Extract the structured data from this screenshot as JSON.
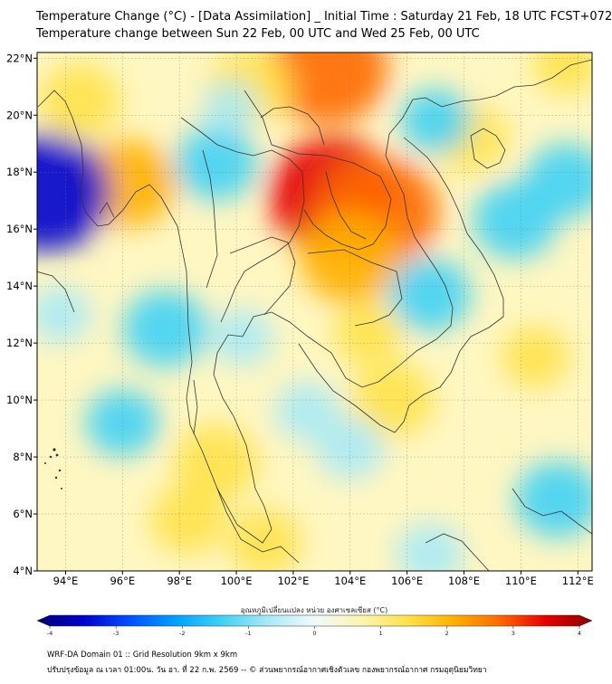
{
  "title": {
    "line1": "Temperature Change (°C) - [Data Assimilation] _ Initial Time : Saturday 21 Feb, 18 UTC FCST+072",
    "line2": "Temperature change between Sun 22 Feb, 00 UTC and Wed 25 Feb, 00 UTC"
  },
  "map": {
    "lat_labels": [
      "22°N",
      "20°N",
      "18°N",
      "16°N",
      "14°N",
      "12°N",
      "10°N",
      "8°N",
      "6°N",
      "4°N"
    ],
    "lon_labels": [
      "94°E",
      "96°E",
      "98°E",
      "100°E",
      "102°E",
      "104°E",
      "106°E",
      "108°E",
      "110°E",
      "112°E"
    ],
    "lat_values": [
      22,
      20,
      18,
      16,
      14,
      12,
      10,
      8,
      6,
      4
    ],
    "lon_values": [
      94,
      96,
      98,
      100,
      102,
      104,
      106,
      108,
      110,
      112
    ],
    "extent": {
      "lon_min": 93,
      "lon_max": 112.5,
      "lat_min": 4,
      "lat_max": 22.2
    },
    "anomalies": [
      {
        "lon": 103.4,
        "lat": 17.2,
        "value": 3.2
      },
      {
        "lon": 105.0,
        "lat": 16.6,
        "value": 2.9
      },
      {
        "lon": 103.2,
        "lat": 21.6,
        "value": 2.9
      },
      {
        "lon": 104.0,
        "lat": 15.0,
        "value": 2.2
      },
      {
        "lon": 96.2,
        "lat": 17.6,
        "value": 2.0
      },
      {
        "lon": 100.5,
        "lat": 21.0,
        "value": 1.6
      },
      {
        "lon": 94.5,
        "lat": 20.5,
        "value": 1.5
      },
      {
        "lon": 99.3,
        "lat": 7.8,
        "value": 1.6
      },
      {
        "lon": 98.3,
        "lat": 5.8,
        "value": 1.3
      },
      {
        "lon": 105.5,
        "lat": 10.0,
        "value": 1.5
      },
      {
        "lon": 101.0,
        "lat": 5.0,
        "value": 1.2
      },
      {
        "lon": 108.2,
        "lat": 19.2,
        "value": 1.3
      },
      {
        "lon": 110.5,
        "lat": 11.5,
        "value": 1.0
      },
      {
        "lon": 111.6,
        "lat": 21.8,
        "value": 1.0
      },
      {
        "lon": 104.6,
        "lat": 12.3,
        "value": 1.0
      },
      {
        "lon": 93.3,
        "lat": 17.3,
        "value": -3.2
      },
      {
        "lon": 99.3,
        "lat": 18.3,
        "value": -1.5
      },
      {
        "lon": 97.5,
        "lat": 12.5,
        "value": -1.6
      },
      {
        "lon": 96.0,
        "lat": 9.2,
        "value": -1.2
      },
      {
        "lon": 106.8,
        "lat": 13.7,
        "value": -1.5
      },
      {
        "lon": 109.8,
        "lat": 16.3,
        "value": -1.6
      },
      {
        "lon": 111.6,
        "lat": 17.7,
        "value": -1.5
      },
      {
        "lon": 104.0,
        "lat": 8.3,
        "value": -1.0
      },
      {
        "lon": 102.5,
        "lat": 9.6,
        "value": -0.9
      },
      {
        "lon": 107.0,
        "lat": 19.8,
        "value": -1.1
      },
      {
        "lon": 111.3,
        "lat": 6.5,
        "value": -1.6
      },
      {
        "lon": 106.8,
        "lat": 4.6,
        "value": -1.0
      },
      {
        "lon": 93.8,
        "lat": 13.0,
        "value": -0.8
      },
      {
        "lon": 100.2,
        "lat": 12.2,
        "value": -0.8
      },
      {
        "lon": 99.8,
        "lat": 20.3,
        "value": -0.6
      }
    ]
  },
  "colorbar": {
    "label": "อุณหภูมิเปลี่ยนแปลง หน่วย องศาเซลเซียส (°C)",
    "ticks": [
      "-4",
      "-3",
      "-2",
      "-1",
      "0",
      "1",
      "2",
      "3",
      "4"
    ],
    "tick_values": [
      -4,
      -3,
      -2,
      -1,
      0,
      1,
      2,
      3,
      4
    ],
    "colors": [
      "#00006e",
      "#0000cd",
      "#0050ff",
      "#00a0ff",
      "#40d2f5",
      "#a8eaf6",
      "#f0fafc",
      "#fbf6b0",
      "#ffe24a",
      "#ffb000",
      "#ff6a00",
      "#e60000",
      "#8a0000"
    ]
  },
  "footer": {
    "line1": "WRF-DA Domain 01 :: Grid Resolution 9km x 9km",
    "line2": "ปรับปรุงข้อมูล ณ เวลา 01:00น. วัน อา. ที่ 22 ก.พ. 2569 -- © ส่วนพยากรณ์อากาศเชิงตัวเลข กองพยากรณ์อากาศ กรมอุตุนิยมวิทยา"
  }
}
